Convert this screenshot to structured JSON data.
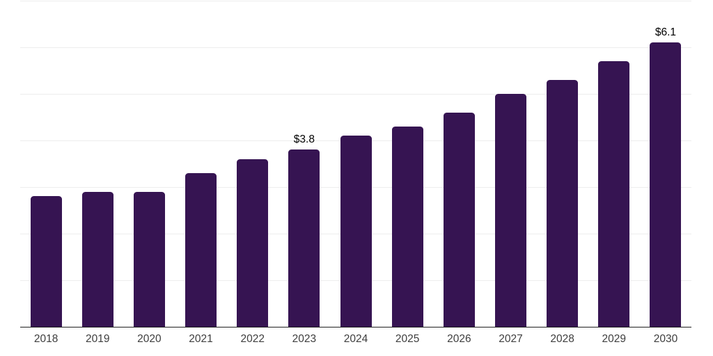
{
  "chart_data": {
    "type": "bar",
    "title": "",
    "xlabel": "",
    "ylabel": "",
    "categories": [
      "2018",
      "2019",
      "2020",
      "2021",
      "2022",
      "2023",
      "2024",
      "2025",
      "2026",
      "2027",
      "2028",
      "2029",
      "2030"
    ],
    "values": [
      2.8,
      2.9,
      2.9,
      3.3,
      3.6,
      3.8,
      4.1,
      4.3,
      4.6,
      5.0,
      5.3,
      5.7,
      6.1
    ],
    "data_labels": {
      "2023": "$3.8",
      "2030": "$6.1"
    },
    "ylim": [
      0,
      7
    ],
    "gridline_step": 1,
    "grid": true,
    "legend_position": "none",
    "colors": {
      "bar": "#361452",
      "gridline": "#ededed",
      "axis_line": "#1f1f1f",
      "tick_label": "#3e3e3e",
      "value_label": "#000000",
      "background": "#ffffff"
    }
  }
}
